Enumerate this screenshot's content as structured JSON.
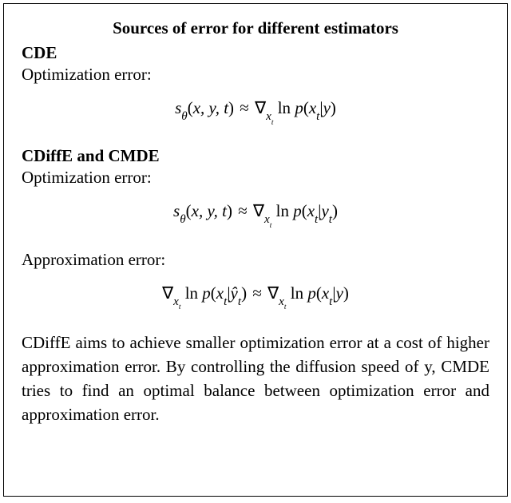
{
  "title": "Sources of error for different estimators",
  "sections": {
    "cde": {
      "head": "CDE",
      "opt_label": "Optimization error:",
      "eqn1_html": "<span>s<sub>θ</sub></span><span class=\"rm\">(</span>x, y, t<span class=\"rm\">)</span> <span class=\"op\">≈</span> <span class=\"nabla\">∇</span><sub>x<sub class=\"sub2\">t</sub></sub> <span class=\"rm\">ln</span> p<span class=\"rm\">(</span>x<sub>t</sub><span class=\"rm\">|</span>y<span class=\"rm\">)</span>"
    },
    "cdiffe_cmde": {
      "head": "CDiffE and CMDE",
      "opt_label": "Optimization error:",
      "eqn2_html": "<span>s<sub>θ</sub></span><span class=\"rm\">(</span>x, y, t<span class=\"rm\">)</span> <span class=\"op\">≈</span> <span class=\"nabla\">∇</span><sub>x<sub class=\"sub2\">t</sub></sub> <span class=\"rm\">ln</span> p<span class=\"rm\">(</span>x<sub>t</sub><span class=\"rm\">|</span>y<sub>t</sub><span class=\"rm\">)</span>",
      "approx_label": "Approximation error:",
      "eqn3_html": "<span class=\"nabla\">∇</span><sub>x<sub class=\"sub2\">t</sub></sub> <span class=\"rm\">ln</span> p<span class=\"rm\">(</span>x<sub>t</sub><span class=\"rm\">|</span>ŷ<sub>t</sub><span class=\"rm\">)</span> <span class=\"op\">≈</span> <span class=\"nabla\">∇</span><sub>x<sub class=\"sub2\">t</sub></sub> <span class=\"rm\">ln</span> p<span class=\"rm\">(</span>x<sub>t</sub><span class=\"rm\">|</span>y<span class=\"rm\">)</span>"
    }
  },
  "body": "CDiffE aims to achieve smaller optimization error at a cost of higher approximation error. By controlling the diffusion speed of y, CMDE tries to find an optimal balance between optimization error and approximation error.",
  "colors": {
    "text": "#000000",
    "background": "#ffffff",
    "border": "#000000"
  },
  "fontsize_pt": {
    "title": 16,
    "body": 16,
    "equation": 16
  }
}
